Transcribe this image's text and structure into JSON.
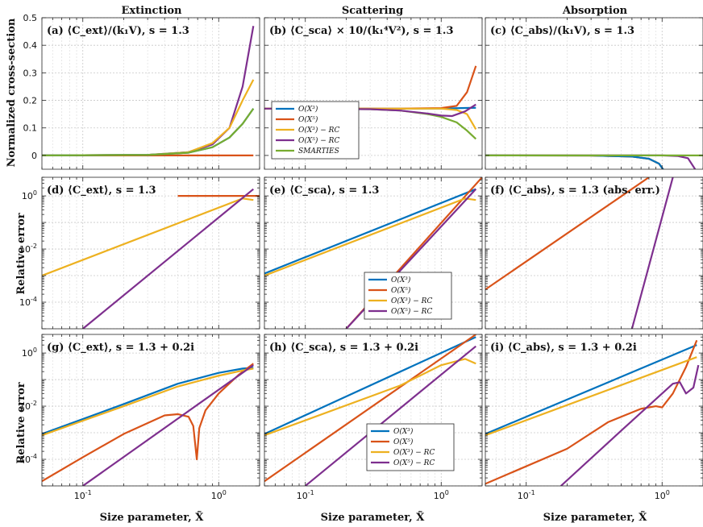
{
  "figure": {
    "column_titles": [
      "Extinction",
      "Scattering",
      "Absorption"
    ],
    "xlabel": "Size parameter, X̃",
    "ylabel_top": "Normalized cross-section",
    "ylabel_err": "Relative error"
  },
  "colors": {
    "O3": "#0072BD",
    "O5": "#D95319",
    "O3RC": "#EDB120",
    "O5RC": "#7E2F8E",
    "SMARTIES": "#77AC30"
  },
  "legend_top": [
    "O(X³)",
    "O(X⁵)",
    "O(X³) − RC",
    "O(X⁵) − RC",
    "SMARTIES"
  ],
  "legend_err": [
    "O(X³)",
    "O(X⁵)",
    "O(X³) − RC",
    "O(X⁵) − RC"
  ],
  "chart_data": [
    {
      "id": "a",
      "type": "line",
      "scale": "linear",
      "title": "(a) ⟨C_ext⟩/(k₁V), s = 1.3",
      "xlim": [
        0.05,
        2.0
      ],
      "ylim": [
        -0.05,
        0.5
      ],
      "ticks": [
        0,
        0.1,
        0.2,
        0.3,
        0.4,
        0.5
      ],
      "tick_labels": [
        "0",
        "0.1",
        "0.2",
        "0.3",
        "0.4",
        "0.5"
      ],
      "xticks": [
        "10^-1",
        "10^0"
      ],
      "series": [
        {
          "name": "O(X³)",
          "key": "O3",
          "x": [
            0.05,
            0.3,
            0.6,
            0.9,
            1.2,
            1.5,
            1.8
          ],
          "y": [
            0,
            0.002,
            0.01,
            0.03,
            0.065,
            0.115,
            0.17
          ]
        },
        {
          "name": "O(X⁵)",
          "key": "O5",
          "x": [
            0.05,
            1.0,
            1.8
          ],
          "y": [
            0,
            0,
            0
          ]
        },
        {
          "name": "O(X³) − RC",
          "key": "O3RC",
          "x": [
            0.05,
            0.3,
            0.6,
            0.9,
            1.2,
            1.5,
            1.8
          ],
          "y": [
            0,
            0.002,
            0.012,
            0.045,
            0.1,
            0.2,
            0.275
          ]
        },
        {
          "name": "O(X⁵) − RC",
          "key": "O5RC",
          "x": [
            0.05,
            0.3,
            0.6,
            0.9,
            1.2,
            1.5,
            1.8
          ],
          "y": [
            0,
            0.002,
            0.012,
            0.04,
            0.1,
            0.25,
            0.47
          ]
        },
        {
          "name": "SMARTIES",
          "key": "SMARTIES",
          "x": [
            0.05,
            0.3,
            0.6,
            0.9,
            1.2,
            1.5,
            1.8
          ],
          "y": [
            0,
            0.002,
            0.01,
            0.03,
            0.065,
            0.115,
            0.17
          ]
        }
      ]
    },
    {
      "id": "b",
      "type": "line",
      "scale": "linear",
      "title": "(b) ⟨C_sca⟩ × 10/(k₁⁴V²), s = 1.3",
      "xlim": [
        0.05,
        2.0
      ],
      "ylim": [
        -0.05,
        0.5
      ],
      "ticks": [
        0,
        0.1,
        0.2,
        0.3,
        0.4,
        0.5
      ],
      "tick_labels": [
        "0",
        "0.1",
        "0.2",
        "0.3",
        "0.4",
        "0.5"
      ],
      "series": [
        {
          "name": "O(X³)",
          "key": "O3",
          "x": [
            0.05,
            0.5,
            1.0,
            1.4,
            1.8
          ],
          "y": [
            0.17,
            0.17,
            0.17,
            0.172,
            0.173
          ]
        },
        {
          "name": "O(X⁵)",
          "key": "O5",
          "x": [
            0.05,
            0.5,
            1.0,
            1.3,
            1.55,
            1.8
          ],
          "y": [
            0.17,
            0.17,
            0.172,
            0.18,
            0.23,
            0.325
          ]
        },
        {
          "name": "O(X³) − RC",
          "key": "O3RC",
          "x": [
            0.05,
            0.5,
            1.0,
            1.3,
            1.55,
            1.8
          ],
          "y": [
            0.17,
            0.17,
            0.17,
            0.165,
            0.15,
            0.095
          ]
        },
        {
          "name": "O(X⁵) − RC",
          "key": "O5RC",
          "x": [
            0.05,
            0.3,
            0.5,
            0.8,
            1.0,
            1.2,
            1.5,
            1.8
          ],
          "y": [
            0.17,
            0.168,
            0.163,
            0.152,
            0.145,
            0.143,
            0.16,
            0.185
          ]
        },
        {
          "name": "SMARTIES",
          "key": "SMARTIES",
          "x": [
            0.05,
            0.3,
            0.5,
            0.8,
            1.0,
            1.3,
            1.55,
            1.8
          ],
          "y": [
            0.17,
            0.168,
            0.163,
            0.15,
            0.14,
            0.12,
            0.09,
            0.06
          ]
        }
      ]
    },
    {
      "id": "c",
      "type": "line",
      "scale": "linear",
      "title": "(c) ⟨C_abs⟩/(k₁V), s = 1.3",
      "xlim": [
        0.05,
        2.0
      ],
      "ylim": [
        -0.05,
        0.5
      ],
      "ticks": [
        0,
        0.1,
        0.2,
        0.3,
        0.4,
        0.5
      ],
      "tick_labels": [
        "0",
        "0.1",
        "0.2",
        "0.3",
        "0.4",
        "0.5"
      ],
      "right_ticks": true,
      "series": [
        {
          "name": "O(X³)",
          "key": "O3",
          "x": [
            0.05,
            0.3,
            0.6,
            0.8,
            0.95,
            1.05
          ],
          "y": [
            0,
            -0.0005,
            -0.004,
            -0.012,
            -0.03,
            -0.06
          ]
        },
        {
          "name": "O(X⁵)",
          "key": "O5",
          "x": [
            0.05,
            0.3,
            0.6,
            0.8,
            0.95,
            1.05
          ],
          "y": [
            0,
            -0.0005,
            -0.004,
            -0.012,
            -0.03,
            -0.06
          ]
        },
        {
          "name": "O(X³) − RC",
          "key": "O3RC",
          "x": [
            0.05,
            0.3,
            0.6,
            0.8,
            0.95,
            1.05
          ],
          "y": [
            0,
            -0.0005,
            -0.004,
            -0.012,
            -0.03,
            -0.06
          ]
        },
        {
          "name": "O(X⁵) − RC",
          "key": "O5RC",
          "x": [
            0.05,
            0.5,
            1.0,
            1.3,
            1.55,
            1.75
          ],
          "y": [
            0,
            0,
            0,
            -0.002,
            -0.01,
            -0.05
          ]
        },
        {
          "name": "SMARTIES",
          "key": "SMARTIES",
          "x": [
            0.05,
            1.0,
            2.0
          ],
          "y": [
            0,
            0,
            0
          ]
        }
      ]
    },
    {
      "id": "d",
      "type": "line",
      "scale": "log",
      "title": "(d) ⟨C_ext⟩, s = 1.3",
      "ylim_exp": [
        -5,
        0.7
      ],
      "ticks_exp": [
        -4,
        -2,
        0
      ],
      "tick_labels": [
        "10^-4",
        "10^-2",
        "10^0"
      ],
      "series": [
        {
          "name": "O(X⁵)",
          "key": "O5",
          "x": [
            0.5,
            2.0
          ],
          "y": [
            1,
            1
          ]
        },
        {
          "name": "O(X³) − RC",
          "key": "O3RC",
          "x": [
            0.05,
            1.5,
            1.8
          ],
          "y": [
            0.001,
            0.8,
            0.7
          ]
        },
        {
          "name": "O(X⁵) − RC",
          "key": "O5RC",
          "x": [
            0.1,
            1.8
          ],
          "y": [
            1e-05,
            1.8
          ]
        }
      ]
    },
    {
      "id": "e",
      "type": "line",
      "scale": "log",
      "title": "(e) ⟨C_sca⟩, s = 1.3",
      "ylim_exp": [
        -5,
        0.7
      ],
      "ticks_exp": [
        -4,
        -2,
        0
      ],
      "tick_labels": [
        "10^-4",
        "10^-2",
        "10^0"
      ],
      "series": [
        {
          "name": "O(X³)",
          "key": "O3",
          "x": [
            0.05,
            1.8
          ],
          "y": [
            0.0012,
            1.8
          ]
        },
        {
          "name": "O(X⁵)",
          "key": "O5",
          "x": [
            0.2,
            2.0
          ],
          "y": [
            1e-05,
            5
          ]
        },
        {
          "name": "O(X³) − RC",
          "key": "O3RC",
          "x": [
            0.05,
            1.5,
            1.8
          ],
          "y": [
            0.001,
            0.8,
            0.7
          ]
        },
        {
          "name": "O(X⁵) − RC",
          "key": "O5RC",
          "x": [
            0.2,
            1.8
          ],
          "y": [
            1e-05,
            1.8
          ]
        }
      ]
    },
    {
      "id": "f",
      "type": "line",
      "scale": "log",
      "title": "(f) ⟨C_abs⟩, s = 1.3 (abs. err.)",
      "ylim_exp": [
        -5,
        0.7
      ],
      "ticks_exp": [
        -4,
        -2,
        0
      ],
      "tick_labels": [
        "10^-4",
        "10^-2",
        "10^0"
      ],
      "right_ticks": true,
      "series": [
        {
          "name": "O(X⁵)",
          "key": "O5",
          "x": [
            0.05,
            0.8
          ],
          "y": [
            0.0003,
            5
          ]
        },
        {
          "name": "O(X⁵) − RC",
          "key": "O5RC",
          "x": [
            0.6,
            1.2
          ],
          "y": [
            1e-05,
            5
          ]
        }
      ]
    },
    {
      "id": "g",
      "type": "line",
      "scale": "log",
      "title": "(g) ⟨C_ext⟩, s = 1.3 + 0.2i",
      "ylim_exp": [
        -5,
        0.7
      ],
      "ticks_exp": [
        -4,
        -2,
        0
      ],
      "tick_labels": [
        "10^-4",
        "10^-2",
        "10^0"
      ],
      "xticks": [
        "10^-1",
        "10^0"
      ],
      "series": [
        {
          "name": "O(X³)",
          "key": "O3",
          "x": [
            0.05,
            0.2,
            0.5,
            1.0,
            1.5,
            1.8
          ],
          "y": [
            0.0009,
            0.012,
            0.07,
            0.18,
            0.26,
            0.28
          ]
        },
        {
          "name": "O(X⁵)",
          "key": "O5",
          "x": [
            0.05,
            0.1,
            0.2,
            0.4,
            0.5,
            0.6,
            0.65,
            0.69,
            0.72,
            0.8,
            1.0,
            1.4,
            1.8
          ],
          "y": [
            1.5e-05,
            0.00012,
            0.0009,
            0.0045,
            0.005,
            0.004,
            0.0018,
            0.0001,
            0.0015,
            0.007,
            0.03,
            0.15,
            0.4
          ]
        },
        {
          "name": "O(X³) − RC",
          "key": "O3RC",
          "x": [
            0.05,
            0.2,
            0.5,
            1.0,
            1.5,
            1.8
          ],
          "y": [
            0.0008,
            0.01,
            0.055,
            0.14,
            0.22,
            0.26
          ]
        },
        {
          "name": "O(X⁵) − RC",
          "key": "O5RC",
          "x": [
            0.1,
            1.8
          ],
          "y": [
            1e-05,
            0.35
          ]
        }
      ]
    },
    {
      "id": "h",
      "type": "line",
      "scale": "log",
      "title": "(h) ⟨C_sca⟩, s = 1.3 + 0.2i",
      "ylim_exp": [
        -5,
        0.7
      ],
      "ticks_exp": [
        -4,
        -2,
        0
      ],
      "tick_labels": [
        "10^-4",
        "10^-2",
        "10^0"
      ],
      "xticks": [
        "10^-1",
        "10^0"
      ],
      "series": [
        {
          "name": "O(X³)",
          "key": "O3",
          "x": [
            0.05,
            1.8
          ],
          "y": [
            0.0009,
            4
          ]
        },
        {
          "name": "O(X⁵)",
          "key": "O5",
          "x": [
            0.05,
            1.8
          ],
          "y": [
            1.5e-05,
            5
          ]
        },
        {
          "name": "O(X³) − RC",
          "key": "O3RC",
          "x": [
            0.05,
            0.5,
            1.0,
            1.5,
            1.8
          ],
          "y": [
            0.0008,
            0.06,
            0.35,
            0.6,
            0.4
          ]
        },
        {
          "name": "O(X⁵) − RC",
          "key": "O5RC",
          "x": [
            0.1,
            1.8
          ],
          "y": [
            1e-05,
            1.8
          ]
        }
      ]
    },
    {
      "id": "i",
      "type": "line",
      "scale": "log",
      "title": "(i) ⟨C_abs⟩, s = 1.3 + 0.2i",
      "ylim_exp": [
        -5,
        0.7
      ],
      "ticks_exp": [
        -4,
        -2,
        0
      ],
      "tick_labels": [
        "10^-4",
        "10^-2",
        "10^0"
      ],
      "xticks": [
        "10^-1",
        "10^0"
      ],
      "right_ticks": true,
      "series": [
        {
          "name": "O(X³)",
          "key": "O3",
          "x": [
            0.05,
            1.8
          ],
          "y": [
            0.0009,
            2
          ]
        },
        {
          "name": "O(X⁵)",
          "key": "O5",
          "x": [
            0.05,
            0.2,
            0.4,
            0.7,
            0.9,
            1.0,
            1.2,
            1.5,
            1.8
          ],
          "y": [
            1.2e-05,
            0.00025,
            0.0025,
            0.008,
            0.01,
            0.009,
            0.03,
            0.3,
            3
          ]
        },
        {
          "name": "O(X³) − RC",
          "key": "O3RC",
          "x": [
            0.05,
            1.8
          ],
          "y": [
            0.0008,
            0.7
          ]
        },
        {
          "name": "O(X⁵) − RC",
          "key": "O5RC",
          "x": [
            0.18,
            0.5,
            1.0,
            1.2,
            1.35,
            1.5,
            1.7,
            1.85
          ],
          "y": [
            1e-05,
            0.0012,
            0.03,
            0.07,
            0.08,
            0.03,
            0.05,
            0.35
          ]
        }
      ]
    }
  ]
}
